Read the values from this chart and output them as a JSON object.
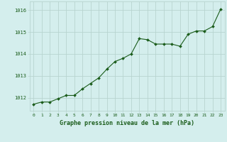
{
  "x": [
    0,
    1,
    2,
    3,
    4,
    5,
    6,
    7,
    8,
    9,
    10,
    11,
    12,
    13,
    14,
    15,
    16,
    17,
    18,
    19,
    20,
    21,
    22,
    23
  ],
  "y": [
    1011.7,
    1011.8,
    1011.8,
    1011.95,
    1012.1,
    1012.1,
    1012.4,
    1012.65,
    1012.9,
    1013.3,
    1013.65,
    1013.8,
    1014.0,
    1014.7,
    1014.65,
    1014.45,
    1014.45,
    1014.45,
    1014.35,
    1014.9,
    1015.05,
    1015.05,
    1015.25,
    1016.05
  ],
  "line_color": "#1a5c1a",
  "marker_color": "#1a5c1a",
  "bg_color": "#d4eeed",
  "grid_color": "#b8d4d0",
  "xlabel": "Graphe pression niveau de la mer (hPa)",
  "xlabel_color": "#1a5c1a",
  "tick_color": "#1a5c1a",
  "ylabel_ticks": [
    1012,
    1013,
    1014,
    1015,
    1016
  ],
  "ylim": [
    1011.4,
    1016.4
  ],
  "xlim": [
    -0.5,
    23.5
  ],
  "xticks": [
    0,
    1,
    2,
    3,
    4,
    5,
    6,
    7,
    8,
    9,
    10,
    11,
    12,
    13,
    14,
    15,
    16,
    17,
    18,
    19,
    20,
    21,
    22,
    23
  ]
}
